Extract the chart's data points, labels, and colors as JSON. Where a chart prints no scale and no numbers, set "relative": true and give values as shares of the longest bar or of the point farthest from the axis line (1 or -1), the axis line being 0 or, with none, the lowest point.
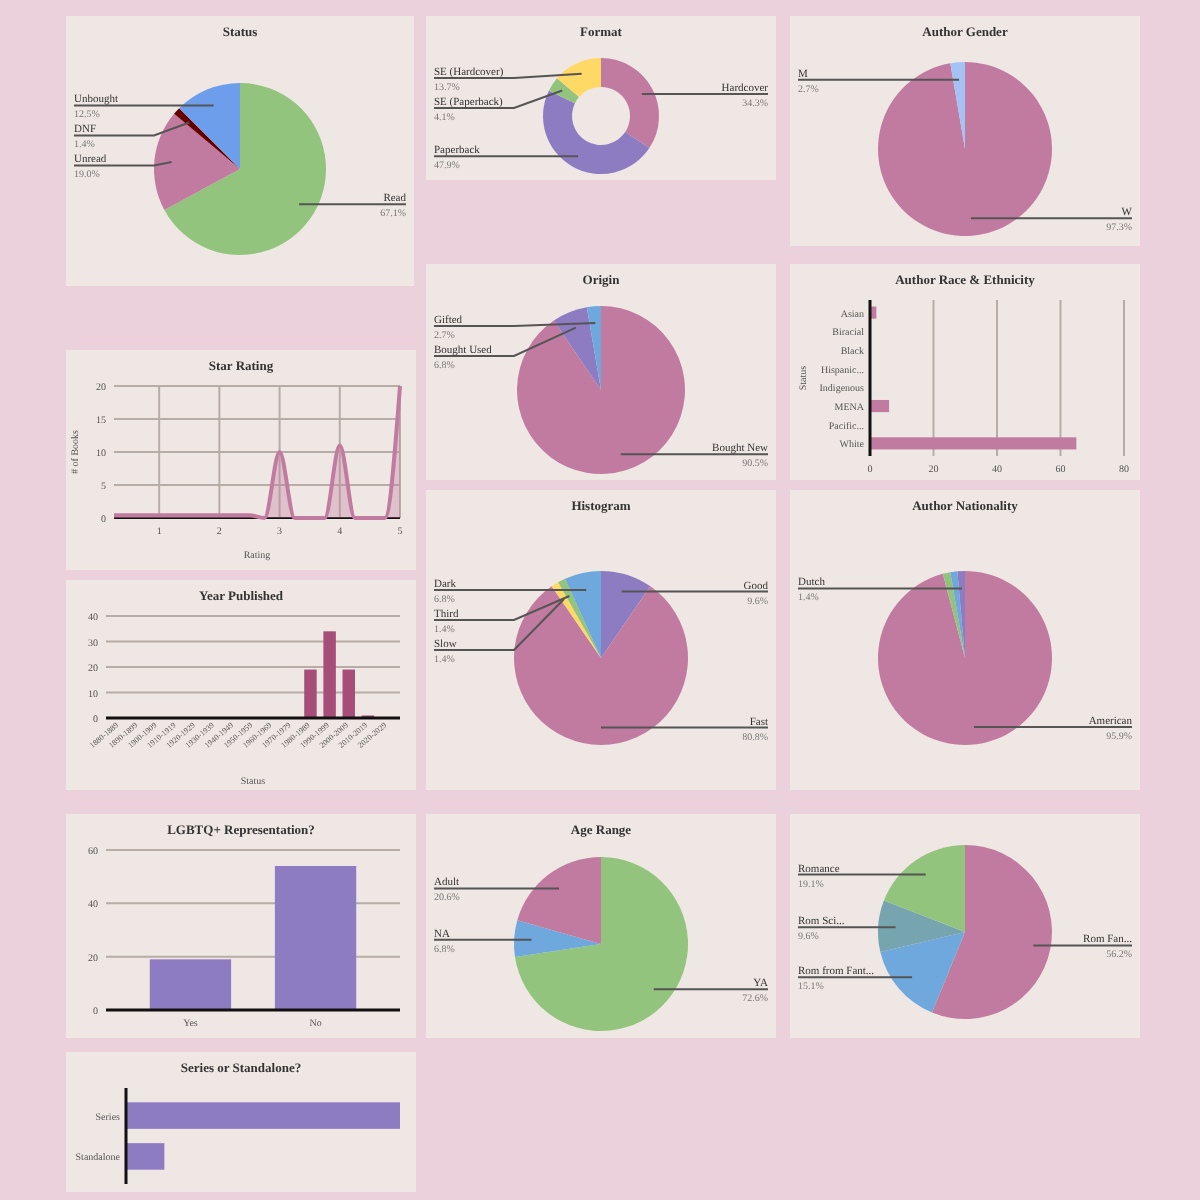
{
  "chart_data": [
    {
      "type": "pie",
      "title": "Status",
      "categories": [
        "Read",
        "Unread",
        "DNF",
        "Unbought"
      ],
      "values": [
        67.1,
        19.0,
        1.4,
        12.5
      ],
      "value_labels": [
        "67.1%",
        "19.0%",
        "1.4%",
        "12.5%"
      ],
      "colors": [
        "#93c47d",
        "#c27ba0",
        "#660000",
        "#6d9eeb"
      ]
    },
    {
      "type": "donut",
      "title": "Format",
      "categories": [
        "Hardcover",
        "Paperback",
        "SE (Paperback)",
        "SE (Hardcover)"
      ],
      "values": [
        34.3,
        47.9,
        4.1,
        13.7
      ],
      "value_labels": [
        "34.3%",
        "47.9%",
        "4.1%",
        "13.7%"
      ],
      "colors": [
        "#c27ba0",
        "#8e7cc3",
        "#93c47d",
        "#ffd966"
      ]
    },
    {
      "type": "pie",
      "title": "Author Gender",
      "categories": [
        "W",
        "M"
      ],
      "values": [
        97.3,
        2.7
      ],
      "value_labels": [
        "97.3%",
        "2.7%"
      ],
      "colors": [
        "#c27ba0",
        "#a4c2f4"
      ]
    },
    {
      "type": "pie",
      "title": "Origin",
      "categories": [
        "Bought New",
        "Bought Used",
        "Gifted"
      ],
      "values": [
        90.5,
        6.8,
        2.7
      ],
      "value_labels": [
        "90.5%",
        "6.8%",
        "2.7%"
      ],
      "colors": [
        "#c27ba0",
        "#8e7cc3",
        "#6fa8dc"
      ]
    },
    {
      "type": "bar",
      "orientation": "horizontal",
      "title": "Author Race & Ethnicity",
      "ylabel": "Status",
      "categories": [
        "Asian",
        "Biracial",
        "Black",
        "Hispanic...",
        "Indigenous",
        "MENA",
        "Pacific...",
        "White"
      ],
      "values": [
        2,
        0,
        0,
        0,
        0,
        6,
        0,
        65
      ],
      "color": "#c27ba0",
      "xlim": [
        0,
        80
      ],
      "xticks": [
        0,
        20,
        40,
        60,
        80
      ],
      "grid": "x"
    },
    {
      "type": "area",
      "title": "Star Rating",
      "xlabel": "Rating",
      "ylabel": "# of Books",
      "x": [
        0.25,
        0.5,
        0.75,
        1,
        1.25,
        1.5,
        1.75,
        2,
        2.25,
        2.5,
        2.75,
        3,
        3.25,
        3.5,
        3.75,
        4,
        4.25,
        4.5,
        4.75,
        5
      ],
      "values": [
        0.4,
        0.4,
        0.4,
        0.4,
        0.4,
        0.4,
        0.4,
        0.4,
        0.4,
        0.4,
        0,
        10,
        0,
        0,
        0,
        11,
        0,
        0,
        0,
        20
      ],
      "color": "#c27ba0",
      "xlim": [
        0.25,
        5
      ],
      "xticks": [
        1,
        2,
        3,
        4,
        5
      ],
      "ylim": [
        0,
        20
      ],
      "yticks": [
        0,
        5,
        10,
        15,
        20
      ],
      "grid": true
    },
    {
      "type": "bar",
      "title": "Year Published",
      "xlabel": "Status",
      "categories": [
        "1880-1889",
        "1890-1899",
        "1900-1909",
        "1910-1919",
        "1920-1929",
        "1930-1939",
        "1940-1949",
        "1950-1959",
        "1960-1969",
        "1970-1979",
        "1980-1989",
        "1990-1999",
        "2000-2009",
        "2010-2019",
        "2020-2029"
      ],
      "values": [
        0,
        0,
        0,
        0,
        0,
        0,
        0,
        0,
        0,
        0,
        19,
        34,
        19,
        1,
        0
      ],
      "color": "#a64d79",
      "ylim": [
        0,
        40
      ],
      "yticks": [
        0,
        10,
        20,
        30,
        40
      ],
      "grid": "y"
    },
    {
      "type": "pie",
      "title": "Histogram",
      "categories": [
        "Good",
        "Fast",
        "Slow",
        "Third",
        "Dark"
      ],
      "values": [
        9.6,
        80.8,
        1.4,
        1.4,
        6.8
      ],
      "value_labels": [
        "9.6%",
        "80.8%",
        "1.4%",
        "1.4%",
        "6.8%"
      ],
      "colors": [
        "#8e7cc3",
        "#c27ba0",
        "#ffd966",
        "#93c47d",
        "#6fa8dc"
      ]
    },
    {
      "type": "pie",
      "title": "Author Nationality",
      "categories": [
        "American",
        null,
        null,
        "Dutch"
      ],
      "values": [
        95.9,
        1.4,
        1.3,
        1.4
      ],
      "value_labels": [
        "95.9%",
        null,
        null,
        "1.4%"
      ],
      "colors": [
        "#c27ba0",
        "#93c47d",
        "#6fa8dc",
        "#8e7cc3"
      ]
    },
    {
      "type": "bar",
      "title": "LGBTQ+ Representation?",
      "categories": [
        "Yes",
        "No"
      ],
      "values": [
        19,
        54
      ],
      "color": "#8e7cc3",
      "ylim": [
        0,
        60
      ],
      "yticks": [
        0,
        20,
        40,
        60
      ],
      "grid": "y"
    },
    {
      "type": "pie",
      "title": "Age Range",
      "categories": [
        "YA",
        "NA",
        "Adult"
      ],
      "values": [
        72.6,
        6.8,
        20.6
      ],
      "value_labels": [
        "72.6%",
        "6.8%",
        "20.6%"
      ],
      "colors": [
        "#93c47d",
        "#6fa8dc",
        "#c27ba0"
      ]
    },
    {
      "type": "pie",
      "categories": [
        "Rom Fan...",
        "Rom from Fant...",
        "Rom Sci...",
        "Romance"
      ],
      "values": [
        56.2,
        15.1,
        9.6,
        19.1
      ],
      "value_labels": [
        "56.2%",
        "15.1%",
        "9.6%",
        "19.1%"
      ],
      "colors": [
        "#c27ba0",
        "#6fa8dc",
        "#76a5af",
        "#93c47d"
      ]
    },
    {
      "type": "bar",
      "orientation": "horizontal",
      "relative": true,
      "title": "Series or Standalone?",
      "categories": [
        "Series",
        "Standalone"
      ],
      "values": [
        1,
        0.14
      ],
      "color": "#8e7cc3"
    }
  ]
}
